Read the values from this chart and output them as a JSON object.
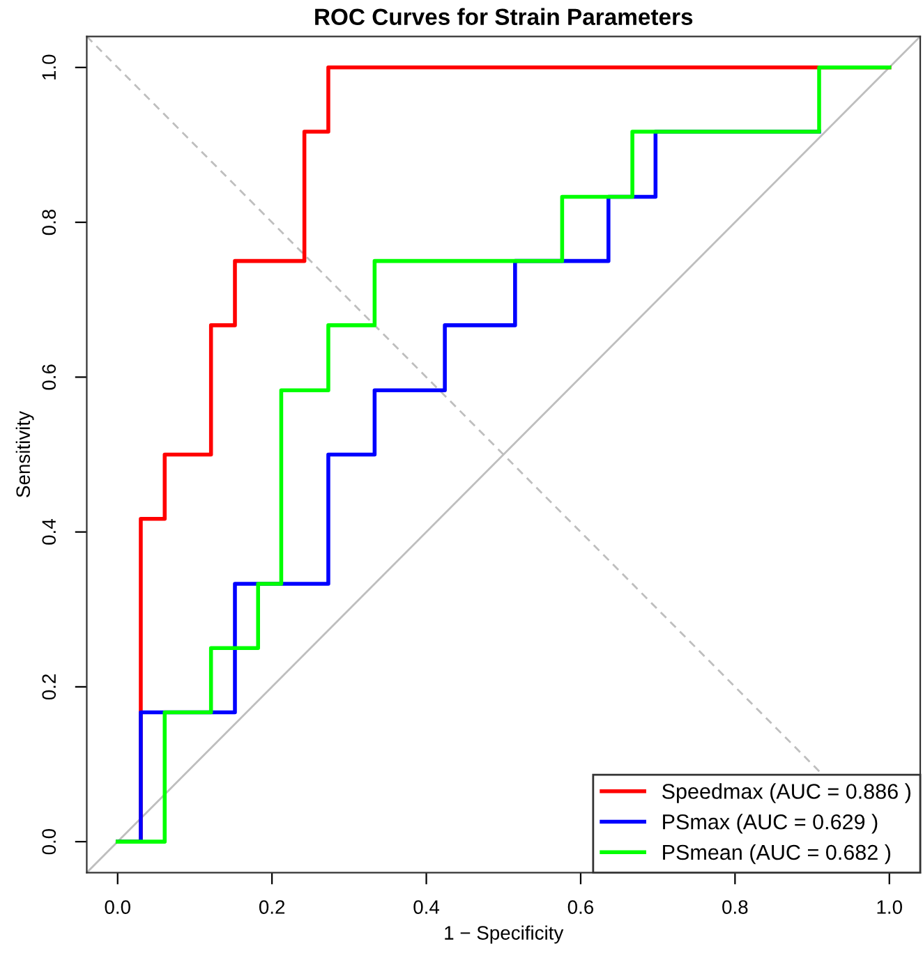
{
  "chart_data": {
    "type": "line",
    "title": "ROC Curves for Strain Parameters",
    "xlabel": "1 − Specificity",
    "ylabel": "Sensitivity",
    "xlim": [
      -0.04,
      1.04
    ],
    "ylim": [
      -0.04,
      1.04
    ],
    "xticks": [
      {
        "value": 0,
        "label": "0.0"
      },
      0.2,
      0.4,
      0.6,
      0.8,
      {
        "value": 1,
        "label": "1.0"
      }
    ],
    "yticks": [
      {
        "value": 0,
        "label": "0.0"
      },
      0.2,
      0.4,
      0.6,
      0.8,
      {
        "value": 1,
        "label": "1.0"
      }
    ],
    "grid": false,
    "legend": "bottom right",
    "marker": "none",
    "series": [
      {
        "color": "#bebebe",
        "line_style": "solid",
        "x": [
          -0.04,
          1.04
        ],
        "values": [
          -0.04,
          1.04
        ]
      },
      {
        "color": "#bebebe",
        "line_style": "dashed",
        "x": [
          -0.04,
          1.04
        ],
        "values": [
          1.04,
          -0.04
        ]
      },
      {
        "name": "Speedmax (AUC = 0.886 )",
        "color": "#ff0000",
        "line_style": "solid",
        "x": [
          0,
          0.03,
          0.03,
          0.061,
          0.061,
          0.121,
          0.121,
          0.152,
          0.152,
          0.242,
          0.242,
          0.273,
          0.273,
          1
        ],
        "values": [
          0,
          0,
          0.417,
          0.417,
          0.5,
          0.5,
          0.667,
          0.667,
          0.75,
          0.75,
          0.917,
          0.917,
          1,
          1
        ]
      },
      {
        "name": "PSmax (AUC = 0.629 )",
        "color": "#0000ff",
        "line_style": "solid",
        "x": [
          0,
          0.03,
          0.03,
          0.152,
          0.152,
          0.273,
          0.273,
          0.333,
          0.333,
          0.424,
          0.424,
          0.515,
          0.515,
          0.636,
          0.636,
          0.697,
          0.697,
          0.909
        ],
        "values": [
          0,
          0,
          0.167,
          0.167,
          0.333,
          0.333,
          0.5,
          0.5,
          0.583,
          0.583,
          0.667,
          0.667,
          0.75,
          0.75,
          0.833,
          0.833,
          0.917,
          0.917
        ]
      },
      {
        "name": "PSmean (AUC = 0.682 )",
        "color": "#00ff00",
        "line_style": "solid",
        "x": [
          0,
          0.061,
          0.061,
          0.121,
          0.121,
          0.182,
          0.182,
          0.212,
          0.212,
          0.273,
          0.273,
          0.333,
          0.333,
          0.576,
          0.576,
          0.667,
          0.667,
          0.909,
          0.909,
          1
        ],
        "values": [
          0,
          0,
          0.167,
          0.167,
          0.25,
          0.25,
          0.333,
          0.333,
          0.583,
          0.583,
          0.667,
          0.667,
          0.75,
          0.75,
          0.833,
          0.833,
          0.917,
          0.917,
          1,
          1
        ]
      }
    ]
  }
}
